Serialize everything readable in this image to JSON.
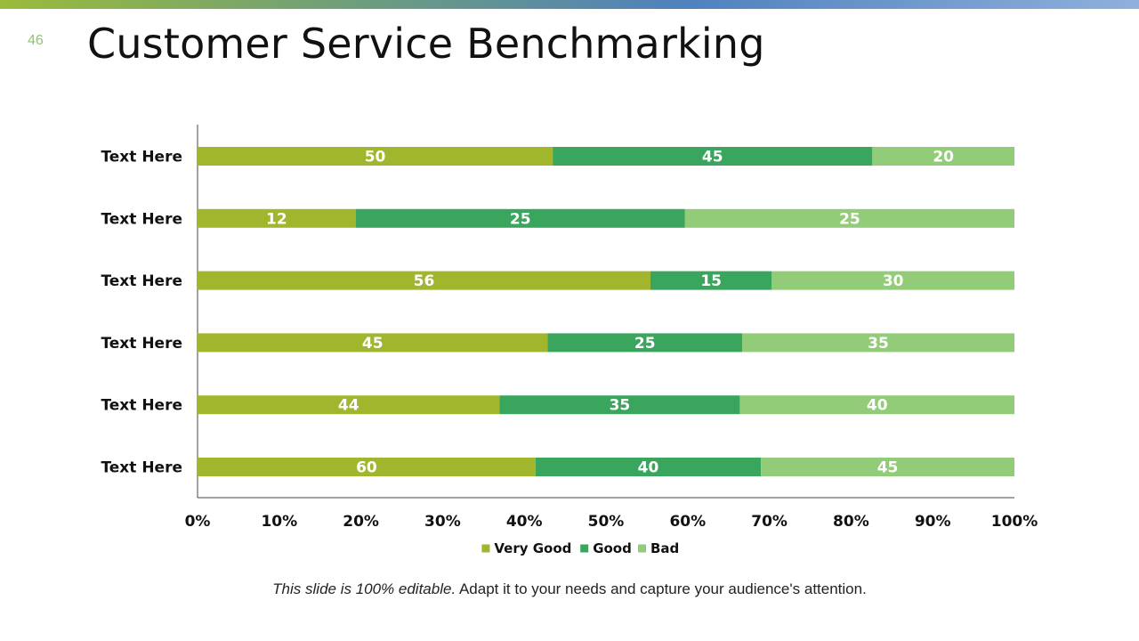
{
  "slide": {
    "number": "46",
    "title": "Customer Service Benchmarking",
    "footer_italic": "This slide is 100% editable.",
    "footer_rest": " Adapt it to your needs and capture your audience's attention."
  },
  "chart_data": {
    "type": "bar",
    "orientation": "horizontal",
    "stacked": "percent",
    "title": "",
    "xlabel": "",
    "ylabel": "",
    "categories": [
      "Text Here",
      "Text Here",
      "Text Here",
      "Text Here",
      "Text Here",
      "Text Here"
    ],
    "series": [
      {
        "name": "Very Good",
        "color": "#a2b62d",
        "values": [
          50,
          12,
          56,
          45,
          44,
          60
        ]
      },
      {
        "name": "Good",
        "color": "#3aa65d",
        "values": [
          45,
          25,
          15,
          25,
          35,
          40
        ]
      },
      {
        "name": "Bad",
        "color": "#92cc78",
        "values": [
          20,
          25,
          30,
          35,
          40,
          45
        ]
      }
    ],
    "xticks": [
      "0%",
      "10%",
      "20%",
      "30%",
      "40%",
      "50%",
      "60%",
      "70%",
      "80%",
      "90%",
      "100%"
    ],
    "xlim": [
      0,
      100
    ],
    "grid": false,
    "legend": "bottom"
  }
}
